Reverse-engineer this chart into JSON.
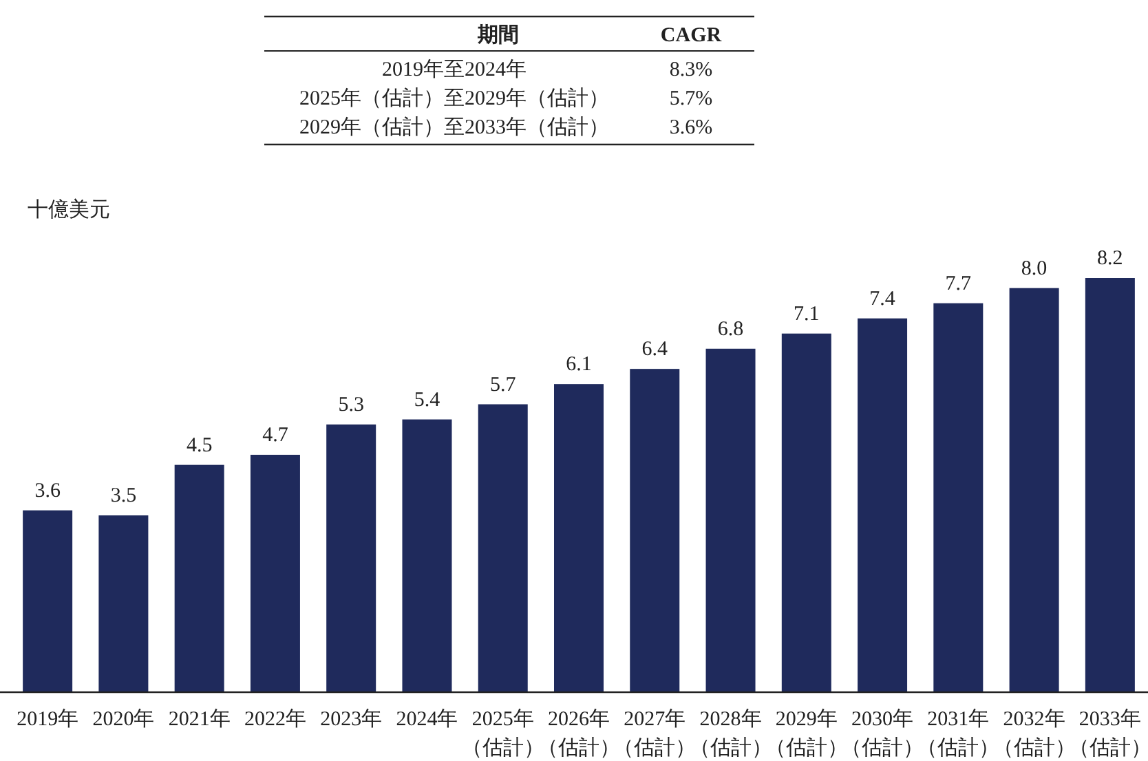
{
  "chart_data": {
    "type": "bar",
    "ylabel": "十億美元",
    "categories": [
      "2019年",
      "2020年",
      "2021年",
      "2022年",
      "2023年",
      "2024年",
      "2025年（估計）",
      "2026年（估計）",
      "2027年（估計）",
      "2028年（估計）",
      "2029年（估計）",
      "2030年（估計）",
      "2031年（估計）",
      "2032年（估計）",
      "2033年（估計）"
    ],
    "values": [
      3.6,
      3.5,
      4.5,
      4.7,
      5.3,
      5.4,
      5.7,
      6.1,
      6.4,
      6.8,
      7.1,
      7.4,
      7.7,
      8.0,
      8.2
    ],
    "value_labels": [
      "3.6",
      "3.5",
      "4.5",
      "4.7",
      "5.3",
      "5.4",
      "5.7",
      "6.1",
      "6.4",
      "6.8",
      "7.1",
      "7.4",
      "7.7",
      "8.0",
      "8.2"
    ],
    "color": "#1f2a5c",
    "annotations": [
      "期間",
      "CAGR",
      "2019年至2024年",
      "8.3%",
      "2025年（估計）至2029年（估計）",
      "5.7%",
      "2029年（估計）至2033年（估計）",
      "3.6%"
    ]
  }
}
